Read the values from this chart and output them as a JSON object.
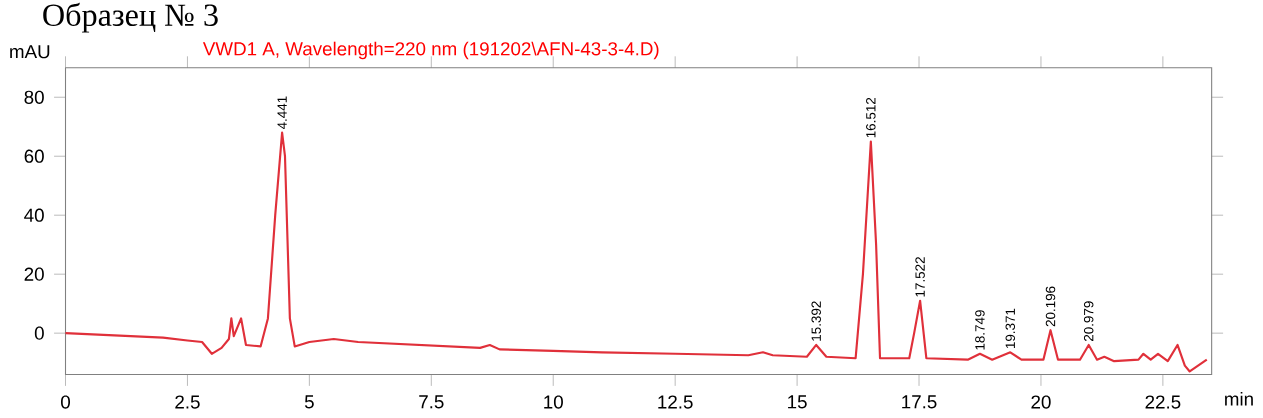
{
  "chart_data": {
    "type": "line",
    "title": "Образец № 3",
    "subtitle": "VWD1 A, Wavelength=220 nm (191202\\AFN-43-3-4.D)",
    "xlabel": "min",
    "ylabel": "mAU",
    "xlim": [
      0,
      23.5
    ],
    "ylim": [
      -14,
      90
    ],
    "xticks": [
      0,
      2.5,
      5,
      7.5,
      10,
      12.5,
      15,
      17.5,
      20,
      22.5
    ],
    "yticks": [
      0,
      20,
      40,
      60,
      80
    ],
    "grid": false,
    "marker": "none",
    "line_style": "solid",
    "series": [
      {
        "color": "#e0303a",
        "x": [
          0,
          2.0,
          2.5,
          2.8,
          3.0,
          3.2,
          3.35,
          3.4,
          3.45,
          3.6,
          3.7,
          4.0,
          4.15,
          4.3,
          4.441,
          4.5,
          4.6,
          4.7,
          5.0,
          5.5,
          6.0,
          8.5,
          8.7,
          8.9,
          10,
          11,
          12.5,
          14,
          14.3,
          14.5,
          15.2,
          15.392,
          15.6,
          16.2,
          16.35,
          16.512,
          16.62,
          16.7,
          17.3,
          17.4,
          17.522,
          17.65,
          18.5,
          18.749,
          19.0,
          19.371,
          19.6,
          20.05,
          20.196,
          20.35,
          20.8,
          20.979,
          21.15,
          21.3,
          21.5,
          22.0,
          22.1,
          22.25,
          22.4,
          22.6,
          22.8,
          22.95,
          23.05,
          23.4
        ],
        "values": [
          0,
          -1.5,
          -2.5,
          -3,
          -7,
          -5,
          -2,
          5,
          -1,
          5,
          -4,
          -4.5,
          5,
          40,
          68,
          60,
          5,
          -4.5,
          -3,
          -2,
          -3,
          -5,
          -4,
          -5.5,
          -6,
          -6.5,
          -7,
          -7.5,
          -6.5,
          -7.5,
          -8,
          -4,
          -8,
          -8.5,
          20,
          65,
          30,
          -8.5,
          -8.5,
          0,
          11,
          -8.5,
          -9,
          -7,
          -9,
          -6.5,
          -9,
          -9,
          1,
          -9,
          -9,
          -4,
          -9,
          -8,
          -9.5,
          -9,
          -7,
          -9,
          -7,
          -9.5,
          -4,
          -11,
          -13,
          -9
        ]
      }
    ],
    "annotations": [
      {
        "text": "4.441",
        "x": 4.441,
        "y": 68
      },
      {
        "text": "15.392",
        "x": 15.392,
        "y": -4
      },
      {
        "text": "16.512",
        "x": 16.512,
        "y": 65
      },
      {
        "text": "17.522",
        "x": 17.522,
        "y": 11
      },
      {
        "text": "18.749",
        "x": 18.749,
        "y": -7
      },
      {
        "text": "19.371",
        "x": 19.371,
        "y": -6.5
      },
      {
        "text": "20.196",
        "x": 20.196,
        "y": 1
      },
      {
        "text": "20.979",
        "x": 20.979,
        "y": -4
      }
    ]
  }
}
